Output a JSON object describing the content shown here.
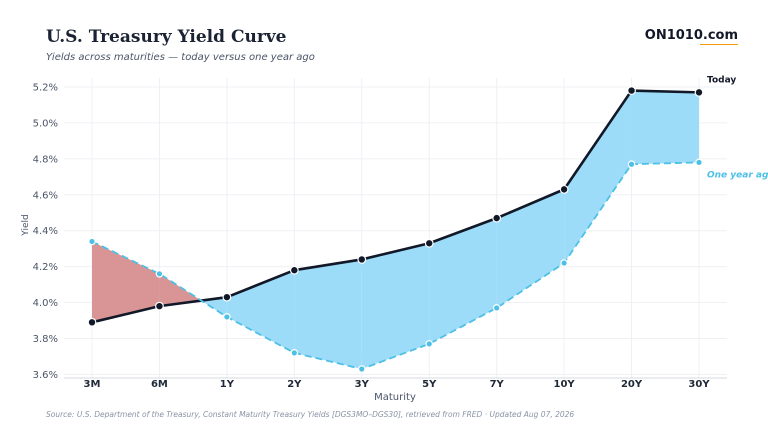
{
  "header": {
    "title": "U.S. Treasury Yield Curve",
    "subtitle": "Yields across maturities — today versus one year ago",
    "brand": "ON1010.com"
  },
  "footer": {
    "source": "Source: U.S. Department of the Treasury, Constant Maturity Treasury Yields [DGS3MO–DGS30], retrieved from FRED · Updated Aug 07, 2026"
  },
  "chart_data": {
    "type": "line",
    "title": "U.S. Treasury Yield Curve",
    "subtitle": "Yields across maturities — today versus one year ago",
    "xlabel": "Maturity",
    "ylabel": "Yield",
    "categories": [
      "3M",
      "6M",
      "1Y",
      "2Y",
      "3Y",
      "5Y",
      "7Y",
      "10Y",
      "20Y",
      "30Y"
    ],
    "ylim": [
      3.58,
      5.25
    ],
    "yticks": [
      3.6,
      3.8,
      4.0,
      4.2,
      4.4,
      4.6,
      4.8,
      5.0,
      5.2
    ],
    "ytick_labels": [
      "3.6%",
      "3.8%",
      "4.0%",
      "4.2%",
      "4.4%",
      "4.6%",
      "4.8%",
      "5.0%",
      "5.2%"
    ],
    "grid": true,
    "series": [
      {
        "name": "Today",
        "values": [
          3.89,
          3.98,
          4.03,
          4.18,
          4.24,
          4.33,
          4.47,
          4.63,
          5.18,
          5.17
        ],
        "color": "#111827",
        "style": "solid"
      },
      {
        "name": "One year ago",
        "values": [
          4.34,
          4.16,
          3.92,
          3.72,
          3.63,
          3.77,
          3.97,
          4.22,
          4.77,
          4.78
        ],
        "color": "#4dc0e6",
        "style": "dashed"
      }
    ],
    "fill_colors": {
      "today_higher": "#9ddcf8",
      "today_lower": "#d99595"
    }
  }
}
